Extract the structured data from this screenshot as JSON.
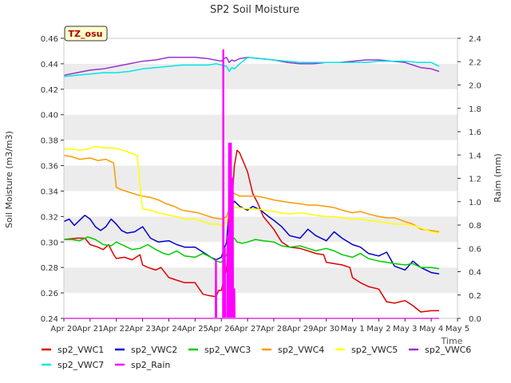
{
  "chart_data": {
    "type": "line",
    "title": "SP2 Soil Moisture",
    "badge": "TZ_osu",
    "xlabel": "Time",
    "ylabel": "Soil Moisture (m3/m3)",
    "y2label": "Raim (mm)",
    "xticks": [
      "Apr 20",
      "Apr 21",
      "Apr 22",
      "Apr 23",
      "Apr 24",
      "Apr 25",
      "Apr 26",
      "Apr 27",
      "Apr 28",
      "Apr 29",
      "Apr 30",
      "May 1",
      "May 2",
      "May 3",
      "May 4",
      "May 5"
    ],
    "xlim": [
      0,
      15
    ],
    "ylim": [
      0.24,
      0.46
    ],
    "yticks": [
      "0.24",
      "0.26",
      "0.28",
      "0.30",
      "0.32",
      "0.34",
      "0.36",
      "0.38",
      "0.40",
      "0.42",
      "0.44",
      "0.46"
    ],
    "y2lim": [
      0,
      2.4
    ],
    "y2ticks": [
      "0.0",
      "0.2",
      "0.4",
      "0.6",
      "0.8",
      "1.0",
      "1.2",
      "1.4",
      "1.6",
      "1.8",
      "2.0",
      "2.2",
      "2.4"
    ],
    "grid": "horizontal bands",
    "legend_position": "bottom",
    "series": [
      {
        "name": "sp2_VWC1",
        "color": "#dd0000",
        "axis": "left",
        "x": [
          0,
          0.5,
          0.8,
          1.0,
          1.3,
          1.5,
          1.7,
          1.9,
          2.0,
          2.3,
          2.6,
          2.9,
          3.0,
          3.2,
          3.5,
          3.7,
          4.0,
          4.3,
          4.6,
          5.0,
          5.3,
          5.5,
          5.8,
          5.9,
          6.0,
          6.1,
          6.2,
          6.3,
          6.4,
          6.5,
          6.6,
          6.7,
          6.8,
          7.0,
          7.2,
          7.4,
          7.6,
          8.0,
          8.3,
          8.6,
          9.0,
          9.3,
          9.6,
          9.9,
          10.0,
          10.3,
          10.6,
          10.9,
          11.0,
          11.3,
          11.6,
          12.0,
          12.3,
          12.6,
          13.0,
          13.3,
          13.6,
          14.0,
          14.3
        ],
        "y": [
          0.302,
          0.303,
          0.303,
          0.298,
          0.296,
          0.294,
          0.298,
          0.29,
          0.287,
          0.288,
          0.286,
          0.29,
          0.282,
          0.28,
          0.278,
          0.28,
          0.272,
          0.27,
          0.268,
          0.268,
          0.259,
          0.258,
          0.257,
          0.262,
          0.262,
          0.27,
          0.28,
          0.3,
          0.33,
          0.36,
          0.372,
          0.37,
          0.365,
          0.355,
          0.338,
          0.33,
          0.32,
          0.31,
          0.3,
          0.296,
          0.295,
          0.293,
          0.291,
          0.29,
          0.284,
          0.283,
          0.282,
          0.28,
          0.272,
          0.268,
          0.265,
          0.263,
          0.253,
          0.252,
          0.254,
          0.25,
          0.245,
          0.246,
          0.246
        ]
      },
      {
        "name": "sp2_VWC2",
        "color": "#0000cc",
        "axis": "left",
        "x": [
          0,
          0.2,
          0.4,
          0.6,
          0.8,
          1.0,
          1.2,
          1.4,
          1.6,
          1.8,
          2.0,
          2.2,
          2.4,
          2.7,
          3.0,
          3.3,
          3.6,
          4.0,
          4.3,
          4.6,
          5.0,
          5.3,
          5.6,
          5.8,
          6.0,
          6.2,
          6.3,
          6.5,
          6.7,
          7.0,
          7.2,
          7.5,
          7.8,
          8.0,
          8.3,
          8.6,
          9.0,
          9.3,
          9.6,
          10.0,
          10.3,
          10.6,
          11.0,
          11.3,
          11.6,
          12.0,
          12.3,
          12.6,
          13.0,
          13.3,
          13.6,
          14.0,
          14.3
        ],
        "y": [
          0.316,
          0.318,
          0.313,
          0.317,
          0.321,
          0.318,
          0.312,
          0.309,
          0.312,
          0.318,
          0.314,
          0.309,
          0.307,
          0.308,
          0.312,
          0.303,
          0.3,
          0.301,
          0.298,
          0.296,
          0.296,
          0.292,
          0.288,
          0.286,
          0.288,
          0.3,
          0.326,
          0.332,
          0.328,
          0.325,
          0.328,
          0.325,
          0.32,
          0.317,
          0.312,
          0.305,
          0.303,
          0.31,
          0.305,
          0.301,
          0.308,
          0.303,
          0.298,
          0.296,
          0.291,
          0.289,
          0.292,
          0.281,
          0.278,
          0.285,
          0.28,
          0.276,
          0.275
        ]
      },
      {
        "name": "sp2_VWC3",
        "color": "#00cc00",
        "axis": "left",
        "x": [
          0,
          0.3,
          0.6,
          0.9,
          1.2,
          1.5,
          1.8,
          2.0,
          2.3,
          2.6,
          2.9,
          3.2,
          3.5,
          3.8,
          4.0,
          4.3,
          4.6,
          5.0,
          5.3,
          5.6,
          5.8,
          6.0,
          6.2,
          6.3,
          6.5,
          6.6,
          6.8,
          7.0,
          7.3,
          7.6,
          8.0,
          8.3,
          8.6,
          9.0,
          9.3,
          9.6,
          10.0,
          10.3,
          10.6,
          11.0,
          11.3,
          11.6,
          12.0,
          12.3,
          12.6,
          13.0,
          13.3,
          13.6,
          14.0,
          14.3
        ],
        "y": [
          0.302,
          0.302,
          0.301,
          0.304,
          0.302,
          0.298,
          0.297,
          0.3,
          0.297,
          0.294,
          0.295,
          0.298,
          0.294,
          0.291,
          0.29,
          0.293,
          0.289,
          0.288,
          0.291,
          0.288,
          0.285,
          0.284,
          0.29,
          0.3,
          0.303,
          0.3,
          0.299,
          0.3,
          0.302,
          0.301,
          0.3,
          0.297,
          0.296,
          0.297,
          0.295,
          0.293,
          0.295,
          0.293,
          0.29,
          0.288,
          0.291,
          0.287,
          0.285,
          0.284,
          0.283,
          0.282,
          0.283,
          0.28,
          0.28,
          0.279
        ]
      },
      {
        "name": "sp2_VWC4",
        "color": "#ff9900",
        "axis": "left",
        "x": [
          0,
          0.3,
          0.6,
          1.0,
          1.3,
          1.6,
          1.9,
          2.0,
          2.2,
          2.5,
          2.8,
          3.0,
          3.3,
          3.6,
          3.9,
          4.2,
          4.5,
          4.8,
          5.1,
          5.4,
          5.7,
          6.0,
          6.2,
          6.3,
          6.4,
          6.5,
          6.7,
          6.9,
          7.0,
          7.3,
          7.6,
          8.0,
          8.3,
          8.6,
          9.0,
          9.3,
          9.6,
          10.0,
          10.3,
          10.6,
          11.0,
          11.3,
          11.6,
          12.0,
          12.3,
          12.6,
          13.0,
          13.3,
          13.6,
          14.0,
          14.3
        ],
        "y": [
          0.368,
          0.367,
          0.365,
          0.366,
          0.364,
          0.365,
          0.362,
          0.343,
          0.341,
          0.339,
          0.337,
          0.336,
          0.335,
          0.333,
          0.33,
          0.328,
          0.325,
          0.324,
          0.323,
          0.321,
          0.319,
          0.318,
          0.32,
          0.326,
          0.34,
          0.338,
          0.336,
          0.336,
          0.336,
          0.336,
          0.335,
          0.333,
          0.332,
          0.331,
          0.33,
          0.329,
          0.329,
          0.328,
          0.327,
          0.325,
          0.323,
          0.324,
          0.322,
          0.32,
          0.319,
          0.319,
          0.316,
          0.314,
          0.31,
          0.309,
          0.308
        ]
      },
      {
        "name": "sp2_VWC5",
        "color": "#ffff00",
        "axis": "left",
        "x": [
          0,
          0.3,
          0.6,
          0.9,
          1.2,
          1.5,
          1.8,
          2.1,
          2.4,
          2.8,
          2.9,
          3.0,
          3.3,
          3.6,
          4.0,
          4.3,
          4.6,
          5.0,
          5.3,
          5.6,
          5.9,
          6.0,
          6.1,
          6.2,
          6.3,
          6.5,
          6.7,
          7.0,
          7.3,
          7.6,
          8.0,
          8.3,
          8.6,
          9.0,
          9.3,
          9.6,
          10.0,
          10.3,
          10.6,
          11.0,
          11.3,
          11.6,
          12.0,
          12.3,
          12.6,
          13.0,
          13.3,
          13.6,
          14.0,
          14.3
        ],
        "y": [
          0.373,
          0.373,
          0.372,
          0.373,
          0.375,
          0.374,
          0.374,
          0.373,
          0.371,
          0.368,
          0.345,
          0.326,
          0.325,
          0.323,
          0.321,
          0.32,
          0.318,
          0.318,
          0.316,
          0.314,
          0.314,
          0.313,
          0.313,
          0.316,
          0.324,
          0.327,
          0.327,
          0.326,
          0.326,
          0.325,
          0.324,
          0.323,
          0.322,
          0.323,
          0.322,
          0.321,
          0.32,
          0.32,
          0.319,
          0.318,
          0.318,
          0.317,
          0.316,
          0.315,
          0.314,
          0.314,
          0.313,
          0.311,
          0.308,
          0.307
        ]
      },
      {
        "name": "sp2_VWC6",
        "color": "#9933cc",
        "axis": "left",
        "x": [
          0,
          0.5,
          1.0,
          1.5,
          2.0,
          2.5,
          3.0,
          3.5,
          4.0,
          4.5,
          5.0,
          5.5,
          6.0,
          6.1,
          6.2,
          6.3,
          6.4,
          6.5,
          6.7,
          7.0,
          7.5,
          8.0,
          8.5,
          9.0,
          9.5,
          10.0,
          10.5,
          11.0,
          11.5,
          12.0,
          12.5,
          13.0,
          13.3,
          13.6,
          14.0,
          14.3
        ],
        "y": [
          0.431,
          0.433,
          0.435,
          0.436,
          0.438,
          0.44,
          0.442,
          0.443,
          0.445,
          0.445,
          0.445,
          0.444,
          0.442,
          0.444,
          0.445,
          0.441,
          0.443,
          0.442,
          0.444,
          0.445,
          0.444,
          0.443,
          0.441,
          0.44,
          0.44,
          0.441,
          0.441,
          0.442,
          0.443,
          0.443,
          0.442,
          0.441,
          0.439,
          0.437,
          0.436,
          0.434
        ]
      },
      {
        "name": "sp2_VWC7",
        "color": "#00e6e6",
        "axis": "left",
        "x": [
          0,
          0.5,
          1.0,
          1.5,
          2.0,
          2.5,
          3.0,
          3.5,
          4.0,
          4.5,
          5.0,
          5.5,
          5.8,
          6.0,
          6.2,
          6.3,
          6.4,
          6.5,
          6.7,
          7.0,
          7.5,
          8.0,
          8.5,
          9.0,
          9.5,
          10.0,
          10.5,
          11.0,
          11.5,
          12.0,
          12.5,
          13.0,
          13.5,
          14.0,
          14.3
        ],
        "y": [
          0.43,
          0.431,
          0.432,
          0.433,
          0.433,
          0.434,
          0.436,
          0.437,
          0.438,
          0.439,
          0.439,
          0.439,
          0.44,
          0.439,
          0.438,
          0.434,
          0.437,
          0.436,
          0.44,
          0.445,
          0.444,
          0.443,
          0.442,
          0.441,
          0.441,
          0.441,
          0.441,
          0.441,
          0.441,
          0.442,
          0.442,
          0.442,
          0.441,
          0.441,
          0.438
        ]
      },
      {
        "name": "sp2_Rain",
        "color": "#ff00ff",
        "axis": "right",
        "x": [
          0,
          5.78,
          5.79,
          5.8,
          5.81,
          6.06,
          6.07,
          6.08,
          6.09,
          6.12,
          6.13,
          6.14,
          6.15,
          6.22,
          6.23,
          6.24,
          6.25,
          6.28,
          6.29,
          6.3,
          6.31,
          6.35,
          6.36,
          6.37,
          6.38,
          6.42,
          6.43,
          6.44,
          6.45,
          6.48,
          6.49,
          6.5,
          6.51,
          14.3
        ],
        "y": [
          0,
          0,
          0.5,
          0.5,
          0,
          0,
          2.3,
          2.3,
          0,
          0,
          0.6,
          0.6,
          0,
          0,
          0.7,
          0.7,
          0,
          0,
          1.5,
          1.5,
          0,
          0,
          1.5,
          1.5,
          0,
          0,
          1.2,
          1.2,
          0,
          0,
          0.25,
          0.25,
          0,
          0
        ]
      }
    ]
  }
}
